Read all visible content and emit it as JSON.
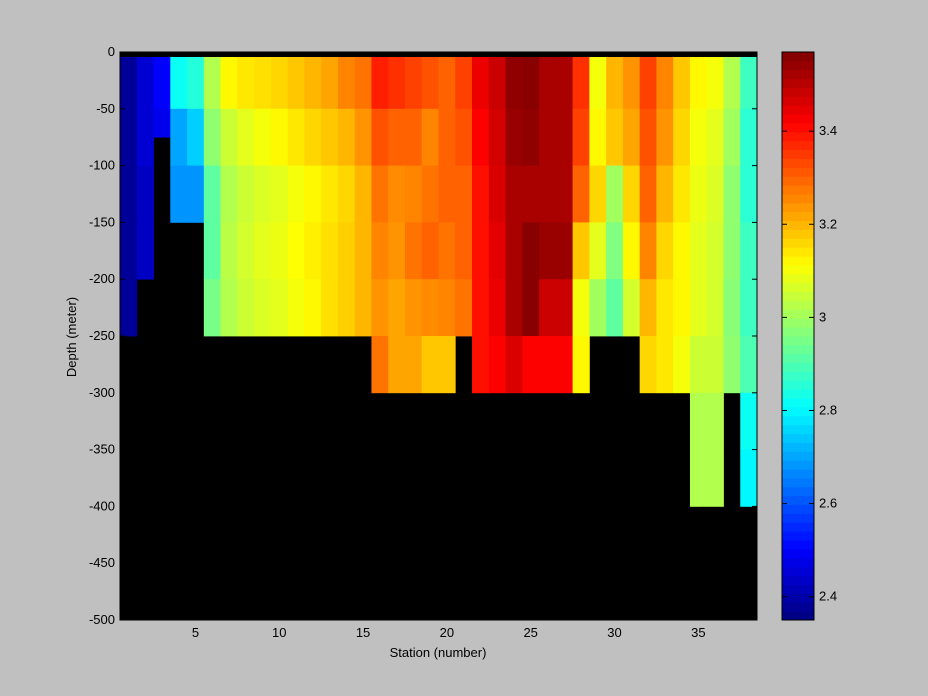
{
  "chart_data": {
    "type": "heatmap",
    "xlabel": "Station (number)",
    "ylabel": "Depth (meter)",
    "xlim": [
      1,
      38
    ],
    "ylim": [
      -500,
      0
    ],
    "x_ticks": [
      5,
      10,
      15,
      20,
      25,
      30,
      35
    ],
    "y_ticks": [
      0,
      -50,
      -100,
      -150,
      -200,
      -250,
      -300,
      -350,
      -400,
      -450,
      -500
    ],
    "colorbar": {
      "range": [
        2.35,
        3.57
      ],
      "ticks": [
        2.4,
        2.6,
        2.8,
        3,
        3.2,
        3.4
      ],
      "tick_labels": [
        "2.4",
        "2.6",
        "2.8",
        "3",
        "3.2",
        "3.4"
      ],
      "colormap": "jet"
    },
    "depth_levels": [
      0,
      -50,
      -100,
      -150,
      -200,
      -250,
      -300,
      -350,
      -400
    ],
    "mask_color": "#000000",
    "stations": [
      {
        "station": 1,
        "bottom": -250,
        "values": [
          2.38,
          2.38,
          2.38,
          2.38,
          2.38
        ]
      },
      {
        "station": 2,
        "bottom": -200,
        "values": [
          2.45,
          2.45,
          2.43,
          2.43
        ]
      },
      {
        "station": 3,
        "bottom": -75,
        "values": [
          2.5,
          2.48
        ]
      },
      {
        "station": 4,
        "bottom": -150,
        "values": [
          2.82,
          2.7,
          2.68
        ]
      },
      {
        "station": 5,
        "bottom": -150,
        "values": [
          2.85,
          2.75,
          2.68
        ]
      },
      {
        "station": 6,
        "bottom": -250,
        "values": [
          3.02,
          2.98,
          2.92,
          2.92,
          2.95
        ]
      },
      {
        "station": 7,
        "bottom": -250,
        "values": [
          3.12,
          3.05,
          3.02,
          3.03,
          3.02
        ]
      },
      {
        "station": 8,
        "bottom": -250,
        "values": [
          3.14,
          3.08,
          3.05,
          3.06,
          3.05
        ]
      },
      {
        "station": 9,
        "bottom": -250,
        "values": [
          3.15,
          3.1,
          3.07,
          3.08,
          3.07
        ]
      },
      {
        "station": 10,
        "bottom": -250,
        "values": [
          3.16,
          3.12,
          3.08,
          3.09,
          3.08
        ]
      },
      {
        "station": 11,
        "bottom": -250,
        "values": [
          3.18,
          3.14,
          3.1,
          3.11,
          3.1
        ]
      },
      {
        "station": 12,
        "bottom": -250,
        "values": [
          3.2,
          3.16,
          3.12,
          3.13,
          3.12
        ]
      },
      {
        "station": 13,
        "bottom": -250,
        "values": [
          3.22,
          3.18,
          3.14,
          3.15,
          3.15
        ]
      },
      {
        "station": 14,
        "bottom": -250,
        "values": [
          3.26,
          3.2,
          3.16,
          3.17,
          3.17
        ]
      },
      {
        "station": 15,
        "bottom": -250,
        "values": [
          3.28,
          3.24,
          3.2,
          3.2,
          3.2
        ]
      },
      {
        "station": 16,
        "bottom": -300,
        "values": [
          3.38,
          3.32,
          3.28,
          3.26,
          3.24,
          3.28
        ]
      },
      {
        "station": 17,
        "bottom": -300,
        "values": [
          3.36,
          3.3,
          3.25,
          3.24,
          3.22,
          3.22
        ]
      },
      {
        "station": 18,
        "bottom": -300,
        "values": [
          3.34,
          3.3,
          3.26,
          3.28,
          3.24,
          3.22
        ]
      },
      {
        "station": 19,
        "bottom": -300,
        "values": [
          3.32,
          3.26,
          3.28,
          3.3,
          3.25,
          3.18
        ]
      },
      {
        "station": 20,
        "bottom": -300,
        "values": [
          3.3,
          3.3,
          3.3,
          3.28,
          3.26,
          3.18
        ]
      },
      {
        "station": 21,
        "bottom": -250,
        "values": [
          3.34,
          3.32,
          3.3,
          3.3,
          3.28
        ]
      },
      {
        "station": 22,
        "bottom": -300,
        "values": [
          3.44,
          3.42,
          3.4,
          3.4,
          3.4,
          3.4
        ]
      },
      {
        "station": 23,
        "bottom": -300,
        "values": [
          3.48,
          3.47,
          3.46,
          3.45,
          3.44,
          3.42
        ]
      },
      {
        "station": 24,
        "bottom": -300,
        "values": [
          3.55,
          3.54,
          3.52,
          3.52,
          3.52,
          3.46
        ]
      },
      {
        "station": 25,
        "bottom": -300,
        "values": [
          3.56,
          3.55,
          3.52,
          3.56,
          3.56,
          3.42
        ]
      },
      {
        "station": 26,
        "bottom": -300,
        "values": [
          3.52,
          3.52,
          3.52,
          3.54,
          3.48,
          3.42
        ]
      },
      {
        "station": 27,
        "bottom": -300,
        "values": [
          3.52,
          3.52,
          3.52,
          3.54,
          3.48,
          3.42
        ]
      },
      {
        "station": 28,
        "bottom": -300,
        "values": [
          3.36,
          3.34,
          3.3,
          3.18,
          3.1,
          3.12
        ]
      },
      {
        "station": 29,
        "bottom": -250,
        "values": [
          3.1,
          3.12,
          3.16,
          3.08,
          3.0
        ]
      },
      {
        "station": 30,
        "bottom": -250,
        "values": [
          3.2,
          3.18,
          3.0,
          2.96,
          2.92
        ]
      },
      {
        "station": 31,
        "bottom": -250,
        "values": [
          3.24,
          3.22,
          3.16,
          3.12,
          3.06
        ]
      },
      {
        "station": 32,
        "bottom": -300,
        "values": [
          3.34,
          3.32,
          3.3,
          3.26,
          3.2,
          3.16
        ]
      },
      {
        "station": 33,
        "bottom": -300,
        "values": [
          3.26,
          3.24,
          3.2,
          3.16,
          3.14,
          3.14
        ]
      },
      {
        "station": 34,
        "bottom": -300,
        "values": [
          3.18,
          3.16,
          3.14,
          3.12,
          3.12,
          3.1
        ]
      },
      {
        "station": 35,
        "bottom": -400,
        "values": [
          3.12,
          3.1,
          3.09,
          3.08,
          3.08,
          3.05,
          3.02,
          3.02
        ]
      },
      {
        "station": 36,
        "bottom": -400,
        "values": [
          3.1,
          3.08,
          3.07,
          3.06,
          3.06,
          3.05,
          3.02,
          3.02
        ]
      },
      {
        "station": 37,
        "bottom": -300,
        "values": [
          3.02,
          3.0,
          2.98,
          2.98,
          2.97,
          2.98
        ]
      },
      {
        "station": 38,
        "bottom": -400,
        "values": [
          2.88,
          2.86,
          2.86,
          2.88,
          2.88,
          2.9,
          2.82,
          2.8
        ]
      }
    ]
  }
}
